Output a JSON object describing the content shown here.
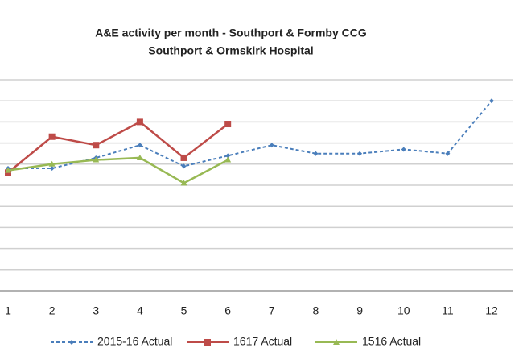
{
  "chart_data": {
    "type": "line",
    "title": "A&E activity per month - Southport & Formby CCG",
    "subtitle": "Southport & Ormskirk Hospital",
    "x": [
      1,
      2,
      3,
      4,
      5,
      6,
      7,
      8,
      9,
      10,
      11,
      12
    ],
    "xlim": [
      1,
      12
    ],
    "xticks": [
      1,
      2,
      3,
      4,
      5,
      6,
      7,
      8,
      9,
      10,
      11,
      12
    ],
    "ylim": [
      0,
      10
    ],
    "yticks": [
      0,
      1,
      2,
      3,
      4,
      5,
      6,
      7,
      8,
      9,
      10
    ],
    "grid": true,
    "legend": "bottom",
    "series": [
      {
        "name": "2015-16 Actual",
        "color": "#4a7ebb",
        "dash": true,
        "marker": "diamond",
        "values": [
          5.8,
          5.8,
          6.3,
          6.9,
          5.9,
          6.4,
          6.9,
          6.5,
          6.5,
          6.7,
          6.5,
          9.0
        ]
      },
      {
        "name": "1617 Actual",
        "color": "#be4b48",
        "dash": false,
        "marker": "square",
        "values": [
          5.6,
          7.3,
          6.9,
          8.0,
          6.3,
          7.9,
          null,
          null,
          null,
          null,
          null,
          null
        ]
      },
      {
        "name": "1516 Actual",
        "color": "#98b954",
        "dash": false,
        "marker": "triangle",
        "values": [
          5.7,
          6.0,
          6.2,
          6.3,
          5.1,
          6.2,
          null,
          null,
          null,
          null,
          null,
          null
        ]
      }
    ]
  }
}
